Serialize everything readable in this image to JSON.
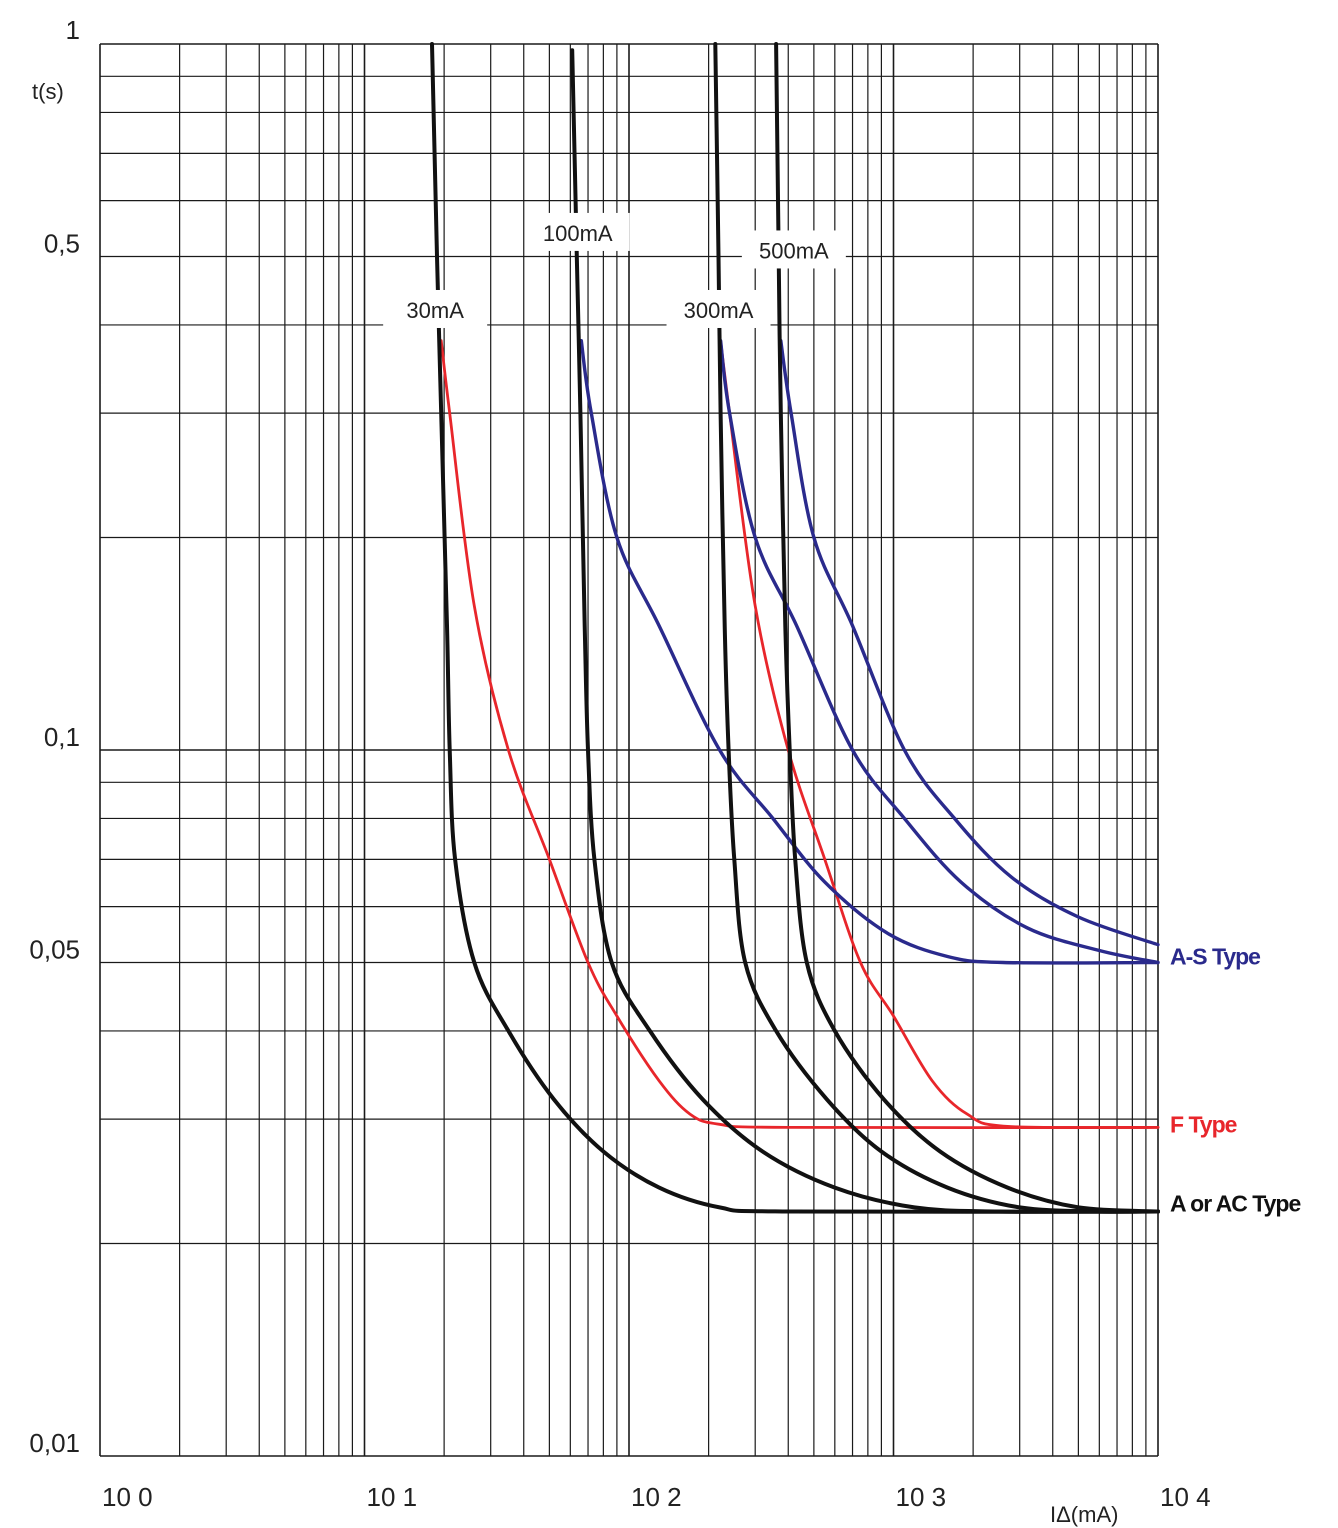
{
  "chart_data": {
    "type": "line",
    "title": "",
    "xlabel": "IΔ(mA)",
    "ylabel": "t(s)",
    "x_scale": "log",
    "y_scale": "log",
    "xlim": [
      1,
      10000
    ],
    "ylim": [
      0.01,
      1
    ],
    "grid": true,
    "x_tick_labels": [
      "10 0",
      "10 1",
      "10 2",
      "10 3",
      "10 4"
    ],
    "x_ticks": [
      1,
      10,
      100,
      1000,
      10000
    ],
    "y_tick_labels": [
      "1",
      "0,5",
      "0,1",
      "0,05",
      "0,01"
    ],
    "y_ticks": [
      1,
      0.5,
      0.1,
      0.05,
      0.01
    ],
    "colors": {
      "ac": "#111111",
      "f": "#e8262b",
      "as": "#2a2a8c"
    },
    "curve_labels": [
      {
        "text": "30mA",
        "x": 18.5,
        "y": 0.42
      },
      {
        "text": "100mA",
        "x": 64,
        "y": 0.54
      },
      {
        "text": "300mA",
        "x": 218,
        "y": 0.42
      },
      {
        "text": "500mA",
        "x": 420,
        "y": 0.51
      }
    ],
    "type_labels": [
      {
        "text": "A-S Type",
        "color": "as",
        "y": 0.051
      },
      {
        "text": "F Type",
        "color": "f",
        "y": 0.0295
      },
      {
        "text": "A or AC Type",
        "color": "ac",
        "y": 0.0228
      }
    ],
    "series": [
      {
        "group": "A or AC Type",
        "color": "ac",
        "points": [
          [
            18.0,
            1.0
          ],
          [
            18.8,
            0.5
          ],
          [
            19.5,
            0.3
          ],
          [
            20.5,
            0.15
          ],
          [
            21.0,
            0.1
          ],
          [
            22,
            0.07
          ],
          [
            26,
            0.05
          ],
          [
            35,
            0.04
          ],
          [
            52,
            0.032
          ],
          [
            80,
            0.027
          ],
          [
            130,
            0.024
          ],
          [
            220,
            0.0225
          ],
          [
            400,
            0.0222
          ],
          [
            10000,
            0.0222
          ]
        ]
      },
      {
        "group": "A or AC Type",
        "color": "ac",
        "points": [
          [
            61,
            0.98
          ],
          [
            63.5,
            0.5
          ],
          [
            65.5,
            0.3
          ],
          [
            68,
            0.15
          ],
          [
            70,
            0.1
          ],
          [
            74,
            0.07
          ],
          [
            86,
            0.05
          ],
          [
            120,
            0.04
          ],
          [
            190,
            0.032
          ],
          [
            320,
            0.027
          ],
          [
            600,
            0.024
          ],
          [
            1200,
            0.0225
          ],
          [
            2500,
            0.0222
          ],
          [
            10000,
            0.0222
          ]
        ]
      },
      {
        "group": "A or AC Type",
        "color": "ac",
        "points": [
          [
            212,
            1.0
          ],
          [
            218,
            0.5
          ],
          [
            222,
            0.3
          ],
          [
            230,
            0.15
          ],
          [
            238,
            0.1
          ],
          [
            250,
            0.07
          ],
          [
            275,
            0.05
          ],
          [
            360,
            0.04
          ],
          [
            560,
            0.032
          ],
          [
            900,
            0.027
          ],
          [
            1600,
            0.024
          ],
          [
            3000,
            0.0225
          ],
          [
            6000,
            0.0222
          ],
          [
            10000,
            0.0222
          ]
        ]
      },
      {
        "group": "A or AC Type",
        "color": "ac",
        "points": [
          [
            360,
            1.0
          ],
          [
            368,
            0.5
          ],
          [
            375,
            0.3
          ],
          [
            390,
            0.15
          ],
          [
            405,
            0.1
          ],
          [
            425,
            0.07
          ],
          [
            470,
            0.05
          ],
          [
            600,
            0.04
          ],
          [
            920,
            0.032
          ],
          [
            1500,
            0.027
          ],
          [
            2700,
            0.024
          ],
          [
            5000,
            0.0225
          ],
          [
            10000,
            0.0222
          ]
        ]
      },
      {
        "group": "F Type",
        "color": "f",
        "points": [
          [
            19.5,
            0.38
          ],
          [
            21,
            0.3
          ],
          [
            26,
            0.16
          ],
          [
            35,
            0.1
          ],
          [
            50,
            0.07
          ],
          [
            70,
            0.05
          ],
          [
            90,
            0.042
          ],
          [
            130,
            0.034
          ],
          [
            170,
            0.0305
          ],
          [
            220,
            0.0295
          ],
          [
            400,
            0.0292
          ],
          [
            10000,
            0.0292
          ]
        ]
      },
      {
        "group": "F Type",
        "color": "f",
        "points": [
          [
            222,
            0.38
          ],
          [
            240,
            0.3
          ],
          [
            300,
            0.16
          ],
          [
            400,
            0.1
          ],
          [
            550,
            0.07
          ],
          [
            750,
            0.05
          ],
          [
            1000,
            0.042
          ],
          [
            1400,
            0.034
          ],
          [
            1900,
            0.0305
          ],
          [
            2700,
            0.0293
          ],
          [
            10000,
            0.0292
          ]
        ]
      },
      {
        "group": "A-S Type",
        "color": "as",
        "points": [
          [
            66,
            0.38
          ],
          [
            72,
            0.3
          ],
          [
            90,
            0.2
          ],
          [
            130,
            0.15
          ],
          [
            220,
            0.1
          ],
          [
            350,
            0.08
          ],
          [
            550,
            0.065
          ],
          [
            950,
            0.055
          ],
          [
            1600,
            0.051
          ],
          [
            2600,
            0.05
          ],
          [
            10000,
            0.05
          ]
        ]
      },
      {
        "group": "A-S Type",
        "color": "as",
        "points": [
          [
            222,
            0.38
          ],
          [
            240,
            0.3
          ],
          [
            300,
            0.2
          ],
          [
            430,
            0.15
          ],
          [
            700,
            0.1
          ],
          [
            1100,
            0.08
          ],
          [
            1800,
            0.065
          ],
          [
            3200,
            0.056
          ],
          [
            6000,
            0.052
          ],
          [
            10000,
            0.05
          ]
        ]
      },
      {
        "group": "A-S Type",
        "color": "as",
        "points": [
          [
            375,
            0.38
          ],
          [
            410,
            0.3
          ],
          [
            500,
            0.2
          ],
          [
            700,
            0.15
          ],
          [
            1100,
            0.1
          ],
          [
            1700,
            0.08
          ],
          [
            2800,
            0.066
          ],
          [
            5000,
            0.058
          ],
          [
            10000,
            0.053
          ]
        ]
      }
    ]
  }
}
